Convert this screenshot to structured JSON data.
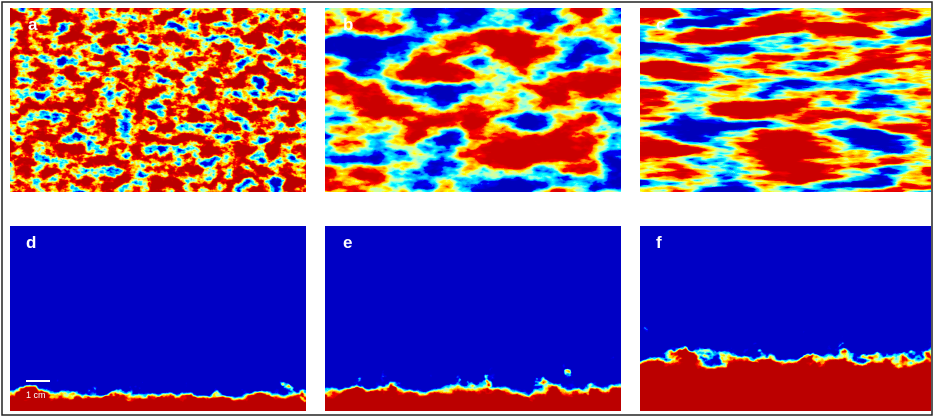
{
  "panels": [
    {
      "label": "a"
    },
    {
      "label": "b"
    },
    {
      "label": "c"
    },
    {
      "label": "d"
    },
    {
      "label": "e"
    },
    {
      "label": "f"
    }
  ],
  "scale_bar": {
    "label": "1 cm"
  }
}
